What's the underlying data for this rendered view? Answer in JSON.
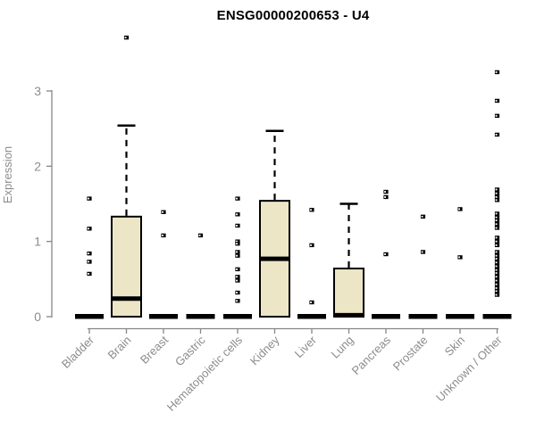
{
  "header": {
    "title": "ENSG00000200653 - U4"
  },
  "colors": {
    "box_fill": "#ece6c6",
    "box_stroke": "#000000",
    "axis": "#878787",
    "text": "#8c8c8c",
    "title": "#000000",
    "background": "#ffffff"
  },
  "chart_data": {
    "type": "boxplot",
    "title": "ENSG00000200653 - U4",
    "xlabel": "",
    "ylabel": "Expression",
    "yticks": [
      0,
      1,
      2,
      3
    ],
    "ylim": [
      0,
      3.75
    ],
    "grid": false,
    "legend": false,
    "categories": [
      "Bladder",
      "Brain",
      "Breast",
      "Gastric",
      "Hematopoietic cells",
      "Kidney",
      "Liver",
      "Lung",
      "Pancreas",
      "Prostate",
      "Skin",
      "Unknown / Other"
    ],
    "series": [
      {
        "name": "Bladder",
        "q1": 0,
        "median": 0,
        "q3": 0,
        "whisker_low": 0,
        "whisker_high": 0,
        "outliers": [
          1.57,
          1.17,
          0.84,
          0.73,
          0.57
        ]
      },
      {
        "name": "Brain",
        "q1": 0,
        "median": 0.24,
        "q3": 1.33,
        "whisker_low": 0,
        "whisker_high": 2.54,
        "outliers": [
          3.71
        ]
      },
      {
        "name": "Breast",
        "q1": 0,
        "median": 0,
        "q3": 0,
        "whisker_low": 0,
        "whisker_high": 0,
        "outliers": [
          1.39,
          1.08
        ]
      },
      {
        "name": "Gastric",
        "q1": 0,
        "median": 0,
        "q3": 0,
        "whisker_low": 0,
        "whisker_high": 0,
        "outliers": [
          1.08
        ]
      },
      {
        "name": "Hematopoietic cells",
        "q1": 0,
        "median": 0,
        "q3": 0,
        "whisker_low": 0,
        "whisker_high": 0,
        "outliers": [
          1.57,
          1.36,
          1.21,
          1.0,
          0.97,
          0.86,
          0.81,
          0.63,
          0.53,
          0.48,
          0.32,
          0.21
        ]
      },
      {
        "name": "Kidney",
        "q1": 0,
        "median": 0.77,
        "q3": 1.54,
        "whisker_low": 0,
        "whisker_high": 2.47,
        "outliers": []
      },
      {
        "name": "Liver",
        "q1": 0,
        "median": 0,
        "q3": 0,
        "whisker_low": 0,
        "whisker_high": 0,
        "outliers": [
          1.42,
          0.95,
          0.19
        ]
      },
      {
        "name": "Lung",
        "q1": 0,
        "median": 0.02,
        "q3": 0.64,
        "whisker_low": 0,
        "whisker_high": 1.5,
        "outliers": []
      },
      {
        "name": "Pancreas",
        "q1": 0,
        "median": 0,
        "q3": 0,
        "whisker_low": 0,
        "whisker_high": 0,
        "outliers": [
          1.66,
          1.59,
          0.83
        ]
      },
      {
        "name": "Prostate",
        "q1": 0,
        "median": 0,
        "q3": 0,
        "whisker_low": 0,
        "whisker_high": 0,
        "outliers": [
          1.33,
          0.86
        ]
      },
      {
        "name": "Skin",
        "q1": 0,
        "median": 0,
        "q3": 0,
        "whisker_low": 0,
        "whisker_high": 0,
        "outliers": [
          1.43,
          0.79
        ]
      },
      {
        "name": "Unknown / Other",
        "q1": 0,
        "median": 0,
        "q3": 0,
        "whisker_low": 0,
        "whisker_high": 0,
        "outliers": [
          3.25,
          2.87,
          2.67,
          2.42,
          1.69,
          1.64,
          1.59,
          1.55,
          1.37,
          1.32,
          1.28,
          1.23,
          1.18,
          1.05,
          1.0,
          0.95,
          0.86,
          0.81,
          0.77,
          0.72,
          0.67,
          0.62,
          0.58,
          0.53,
          0.48,
          0.43,
          0.38,
          0.34,
          0.29
        ]
      }
    ]
  }
}
